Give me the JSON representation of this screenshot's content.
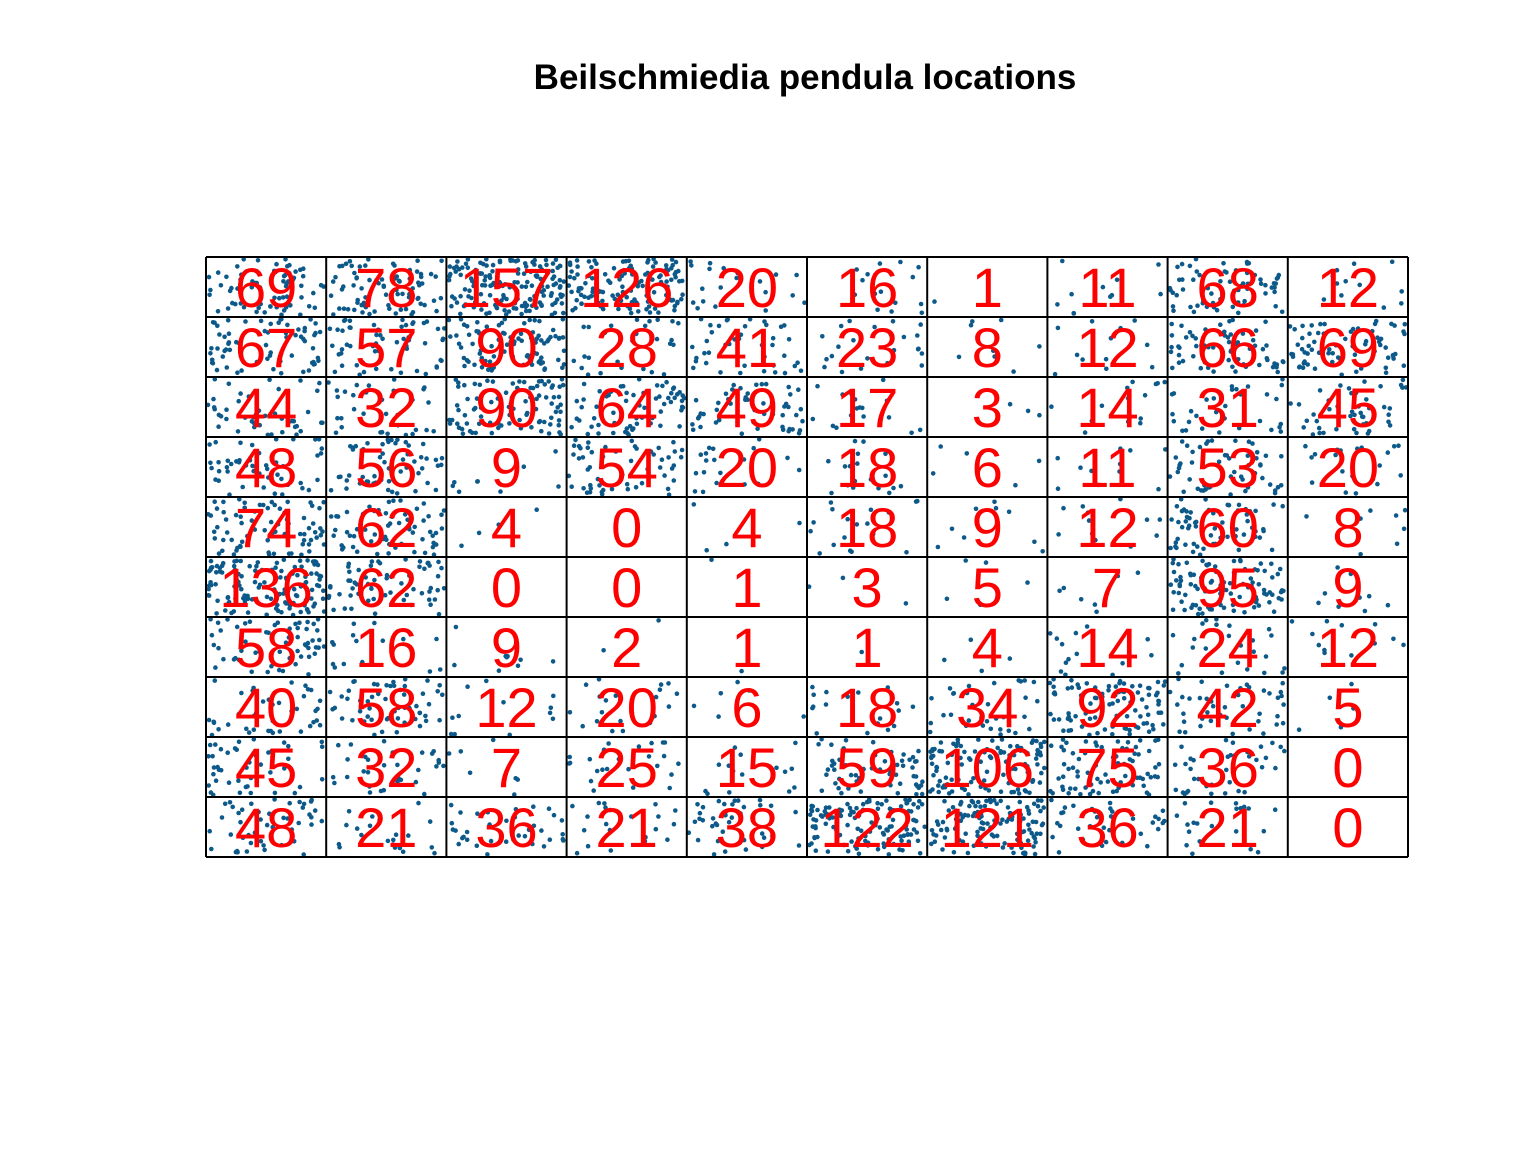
{
  "chart_data": {
    "type": "scatter",
    "title": "Beilschmiedia pendula locations",
    "xlim": [
      0,
      1000
    ],
    "ylim": [
      0,
      500
    ],
    "grid": {
      "nx": 10,
      "ny": 10
    },
    "point_color": "#0d5a8a",
    "label_color": "#ff0000",
    "cell_counts": [
      [
        69,
        78,
        157,
        126,
        20,
        16,
        1,
        11,
        68,
        12
      ],
      [
        67,
        57,
        90,
        28,
        41,
        23,
        8,
        12,
        66,
        69
      ],
      [
        44,
        32,
        90,
        64,
        49,
        17,
        3,
        14,
        31,
        45
      ],
      [
        48,
        56,
        9,
        54,
        20,
        18,
        6,
        11,
        53,
        20
      ],
      [
        74,
        62,
        4,
        0,
        4,
        18,
        9,
        12,
        60,
        8
      ],
      [
        136,
        62,
        0,
        0,
        1,
        3,
        5,
        7,
        95,
        9
      ],
      [
        58,
        16,
        9,
        2,
        1,
        1,
        4,
        14,
        24,
        12
      ],
      [
        40,
        58,
        12,
        20,
        6,
        18,
        34,
        92,
        42,
        5
      ],
      [
        45,
        32,
        7,
        25,
        15,
        59,
        106,
        75,
        36,
        0
      ],
      [
        48,
        21,
        36,
        21,
        38,
        122,
        121,
        36,
        21,
        0
      ]
    ]
  }
}
